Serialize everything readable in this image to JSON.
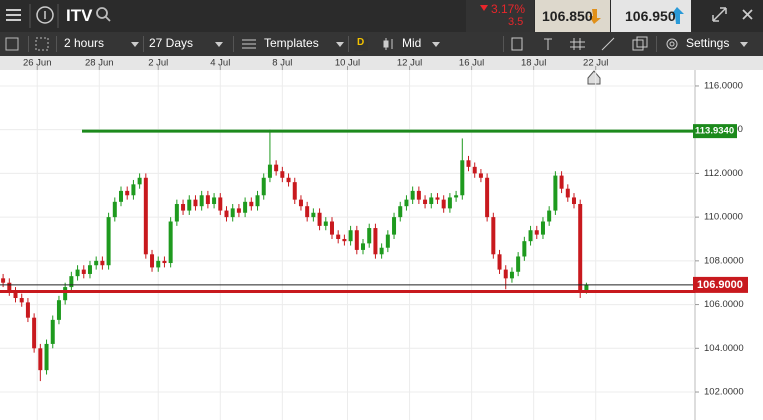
{
  "toolbar": {
    "symbol": "ITV",
    "change_pct": "3.17%",
    "change": "3.5",
    "sell": "106.850",
    "buy": "106.950",
    "interval": "2 hours",
    "range": "27 Days",
    "templates": "Templates",
    "d": "D",
    "price_type": "Mid",
    "settings": "Settings"
  },
  "chart_data": {
    "type": "candlestick",
    "x": [
      0.5,
      1.5,
      2.5,
      3.5,
      4.5,
      5.5,
      6.5,
      7.5,
      8.5,
      9.5,
      10.5,
      11.5,
      12.5,
      13.5,
      14.5,
      15.5,
      16.5,
      17.5,
      18.5,
      19.5,
      20.5,
      21.5,
      22.5,
      23.5,
      24.5,
      25.5,
      26.5,
      27.5,
      28.5,
      29.5,
      30.5,
      31.5,
      32.5,
      33.5,
      34.5,
      35.5,
      36.5,
      37.5,
      38.5,
      39.5,
      40.5,
      41.5,
      42.5,
      43.5,
      44.5,
      45.5,
      46.5,
      47.5,
      48.5,
      49.5,
      50.5,
      51.5,
      52.5,
      53.5,
      54.5,
      55.5,
      56.5,
      57.5,
      58.5,
      59.5,
      60.5,
      61.5,
      62.5,
      63.5,
      64.5,
      65.5,
      66.5,
      67.5,
      68.5,
      69.5,
      70.5,
      71.5,
      72.5,
      73.5,
      74.5,
      75.5,
      76.5,
      77.5,
      78.5,
      79.5,
      80.5,
      81.5,
      82.5,
      83.5,
      84.5,
      85.5,
      86.5,
      87.5,
      88.5,
      89.5,
      90.5,
      91.5,
      92.5,
      93.5,
      94.5
    ],
    "open": [
      107.2,
      107.0,
      106.6,
      106.3,
      106.1,
      105.4,
      104.0,
      103.0,
      104.2,
      105.3,
      106.2,
      106.8,
      107.3,
      107.6,
      107.4,
      107.8,
      108.0,
      107.8,
      110.0,
      110.7,
      111.2,
      111.0,
      111.5,
      111.8,
      108.3,
      107.7,
      108.0,
      107.9,
      109.8,
      110.6,
      110.3,
      110.8,
      110.5,
      111.0,
      110.6,
      110.9,
      110.3,
      110.0,
      110.4,
      110.2,
      110.7,
      110.5,
      111.0,
      111.8,
      112.4,
      112.1,
      111.8,
      111.6,
      110.8,
      110.5,
      110.0,
      110.2,
      109.6,
      109.8,
      109.2,
      109.0,
      108.9,
      109.4,
      108.5,
      108.8,
      109.5,
      108.3,
      108.6,
      109.2,
      110.0,
      110.5,
      110.8,
      111.2,
      110.8,
      110.6,
      110.9,
      110.8,
      110.4,
      110.9,
      111.0,
      112.6,
      112.3,
      112.0,
      111.8,
      110.0,
      108.3,
      107.6,
      107.2,
      107.5,
      108.2,
      108.9,
      109.4,
      109.2,
      109.8,
      110.3,
      111.9,
      111.3,
      110.9,
      110.6,
      106.6
    ],
    "high": [
      107.4,
      107.2,
      106.8,
      106.5,
      106.3,
      105.6,
      104.2,
      104.4,
      105.5,
      106.4,
      107.0,
      107.5,
      107.8,
      107.8,
      108.0,
      108.2,
      108.2,
      110.2,
      110.9,
      111.4,
      111.4,
      111.7,
      112.0,
      112.0,
      108.5,
      108.2,
      108.2,
      110.0,
      110.8,
      110.8,
      111.0,
      111.0,
      111.2,
      111.2,
      111.1,
      111.1,
      110.5,
      110.6,
      110.6,
      110.9,
      110.9,
      111.2,
      112.0,
      114.0,
      112.6,
      112.3,
      112.0,
      111.8,
      111.0,
      110.7,
      110.4,
      110.4,
      110.0,
      110.0,
      109.4,
      109.2,
      109.6,
      109.6,
      109.0,
      109.7,
      109.7,
      108.8,
      109.4,
      110.2,
      110.7,
      111.0,
      111.4,
      111.4,
      111.0,
      111.1,
      111.1,
      111.0,
      111.1,
      111.2,
      113.6,
      112.8,
      112.5,
      112.2,
      112.0,
      110.2,
      108.5,
      107.8,
      107.7,
      108.4,
      109.1,
      109.6,
      109.6,
      110.0,
      110.5,
      112.1,
      112.1,
      111.5,
      111.1,
      110.8,
      107.0
    ],
    "low": [
      106.8,
      106.4,
      106.1,
      105.9,
      105.2,
      103.8,
      102.5,
      102.8,
      104.0,
      105.1,
      106.0,
      106.6,
      107.1,
      107.2,
      107.2,
      107.6,
      107.6,
      107.6,
      109.8,
      110.5,
      110.8,
      110.8,
      111.3,
      108.1,
      107.5,
      107.5,
      107.7,
      107.7,
      109.6,
      110.1,
      110.1,
      110.3,
      110.3,
      110.4,
      110.4,
      110.1,
      109.8,
      109.8,
      110.0,
      110.0,
      110.3,
      110.3,
      110.8,
      111.6,
      111.9,
      111.6,
      111.4,
      110.6,
      110.3,
      109.8,
      109.8,
      109.4,
      109.4,
      109.0,
      108.8,
      108.7,
      108.7,
      108.3,
      108.3,
      108.6,
      108.1,
      108.1,
      108.4,
      109.0,
      109.8,
      110.3,
      110.6,
      110.6,
      110.4,
      110.4,
      110.6,
      110.2,
      110.2,
      110.7,
      110.8,
      112.1,
      111.8,
      111.6,
      109.8,
      108.1,
      107.4,
      106.7,
      107.0,
      107.3,
      108.0,
      108.7,
      109.0,
      109.0,
      109.6,
      110.1,
      111.1,
      110.7,
      110.4,
      106.3,
      106.5
    ],
    "close": [
      107.0,
      106.6,
      106.3,
      106.1,
      105.4,
      104.0,
      103.0,
      104.2,
      105.3,
      106.2,
      106.8,
      107.3,
      107.6,
      107.4,
      107.8,
      108.0,
      107.8,
      110.0,
      110.7,
      111.2,
      111.0,
      111.5,
      111.8,
      108.3,
      107.7,
      108.0,
      107.9,
      109.8,
      110.6,
      110.3,
      110.8,
      110.5,
      111.0,
      110.6,
      110.9,
      110.3,
      110.0,
      110.4,
      110.2,
      110.7,
      110.5,
      111.0,
      111.8,
      112.4,
      112.1,
      111.8,
      111.6,
      110.8,
      110.5,
      110.0,
      110.2,
      109.6,
      109.8,
      109.2,
      109.0,
      108.9,
      109.4,
      108.5,
      108.8,
      109.5,
      108.3,
      108.6,
      109.2,
      110.0,
      110.5,
      110.8,
      111.2,
      110.8,
      110.6,
      110.9,
      110.8,
      110.4,
      110.9,
      111.0,
      112.6,
      112.3,
      112.0,
      111.8,
      110.0,
      108.3,
      107.6,
      107.2,
      107.5,
      108.2,
      108.9,
      109.4,
      109.2,
      109.8,
      110.3,
      111.9,
      111.3,
      110.9,
      110.6,
      106.6,
      106.9
    ],
    "up_color": "#1e9a1e",
    "down_color": "#c8191e",
    "xlim": [
      0,
      112
    ],
    "xticks": [
      {
        "value": 6,
        "label": "26 Jun"
      },
      {
        "value": 16,
        "label": "28 Jun"
      },
      {
        "value": 25.5,
        "label": "2 Jul"
      },
      {
        "value": 35.5,
        "label": "4 Jul"
      },
      {
        "value": 45.5,
        "label": "8 Jul"
      },
      {
        "value": 56,
        "label": "10 Jul"
      },
      {
        "value": 66,
        "label": "12 Jul"
      },
      {
        "value": 76,
        "label": "16 Jul"
      },
      {
        "value": 86,
        "label": "18 Jul"
      },
      {
        "value": 96,
        "label": "22 Jul"
      }
    ],
    "ylim": [
      100.72,
      116.73
    ],
    "yticks": [
      {
        "value": 102,
        "label": "102.0000"
      },
      {
        "value": 104,
        "label": "104.0000"
      },
      {
        "value": 106,
        "label": "106.0000"
      },
      {
        "value": 108,
        "label": "108.0000"
      },
      {
        "value": 110,
        "label": "110.0000"
      },
      {
        "value": 112,
        "label": "112.0000"
      },
      {
        "value": 114,
        "label": "114.0000"
      },
      {
        "value": 116,
        "label": "116.0000"
      }
    ],
    "grid": true,
    "levels": [
      {
        "value": 113.934,
        "label": "113.9340",
        "color": "#1c8a1c"
      },
      {
        "value": 106.6,
        "color": "#c8191e"
      }
    ],
    "last_price": {
      "value": 106.9,
      "label": "106.9000",
      "color": "#c8191e"
    }
  }
}
